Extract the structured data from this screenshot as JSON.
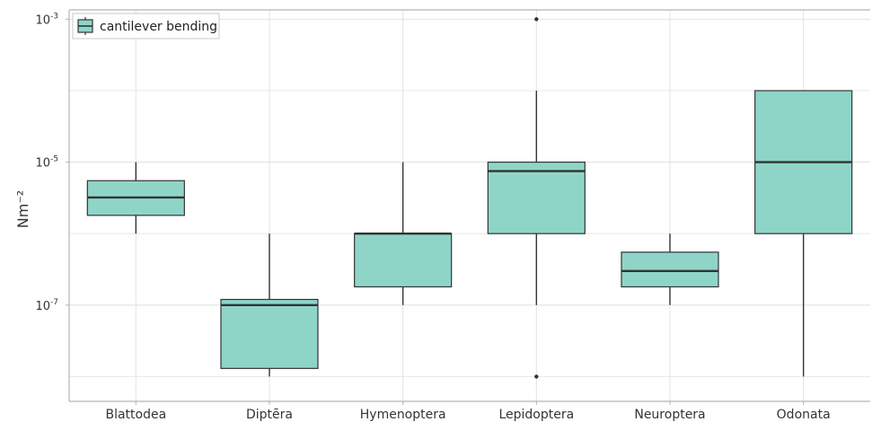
{
  "chart_data": {
    "type": "box",
    "ylabel": "Nm⁻²",
    "yscale": "log",
    "ylim": [
      4.5e-09,
      0.00135
    ],
    "grid": true,
    "legend": {
      "label": "cantilever  bending",
      "placement": "top-left"
    },
    "y_ticks": [
      {
        "value": 1e-07,
        "base": "10",
        "exp": "-7"
      },
      {
        "value": 1e-05,
        "base": "10",
        "exp": "-5"
      },
      {
        "value": 0.001,
        "base": "10",
        "exp": "-3"
      }
    ],
    "categories": [
      "Blattodea",
      "Diptēra",
      "Hymenoptera",
      "Lepidoptera",
      "Neuroptera",
      "Odonata"
    ],
    "boxes": [
      {
        "category": "Blattodea",
        "whisker_low": 1e-06,
        "q1": 1.8e-06,
        "median": 3.2e-06,
        "q3": 5.5e-06,
        "whisker_high": 1e-05,
        "outliers": []
      },
      {
        "category": "Diptēra",
        "whisker_low": 1e-08,
        "q1": 1.3e-08,
        "median": 1e-07,
        "q3": 1.2e-07,
        "whisker_high": 1e-06,
        "outliers": []
      },
      {
        "category": "Hymenoptera",
        "whisker_low": 1e-07,
        "q1": 1.8e-07,
        "median": 1e-06,
        "q3": 1e-06,
        "whisker_high": 1e-05,
        "outliers": []
      },
      {
        "category": "Lepidoptera",
        "whisker_low": 1e-07,
        "q1": 1e-06,
        "median": 7.5e-06,
        "q3": 1e-05,
        "whisker_high": 0.0001,
        "outliers": [
          0.001,
          1e-08
        ]
      },
      {
        "category": "Neuroptera",
        "whisker_low": 1e-07,
        "q1": 1.8e-07,
        "median": 3e-07,
        "q3": 5.5e-07,
        "whisker_high": 1e-06,
        "outliers": []
      },
      {
        "category": "Odonata",
        "whisker_low": 1e-08,
        "q1": 1e-06,
        "median": 1e-05,
        "q3": 0.0001,
        "whisker_high": 0.0001,
        "outliers": []
      }
    ],
    "colors": {
      "box_fill": "#8ed5c8",
      "box_stroke": "#333333",
      "grid": "#e3e3e3",
      "axis": "#b3b3b3"
    }
  }
}
